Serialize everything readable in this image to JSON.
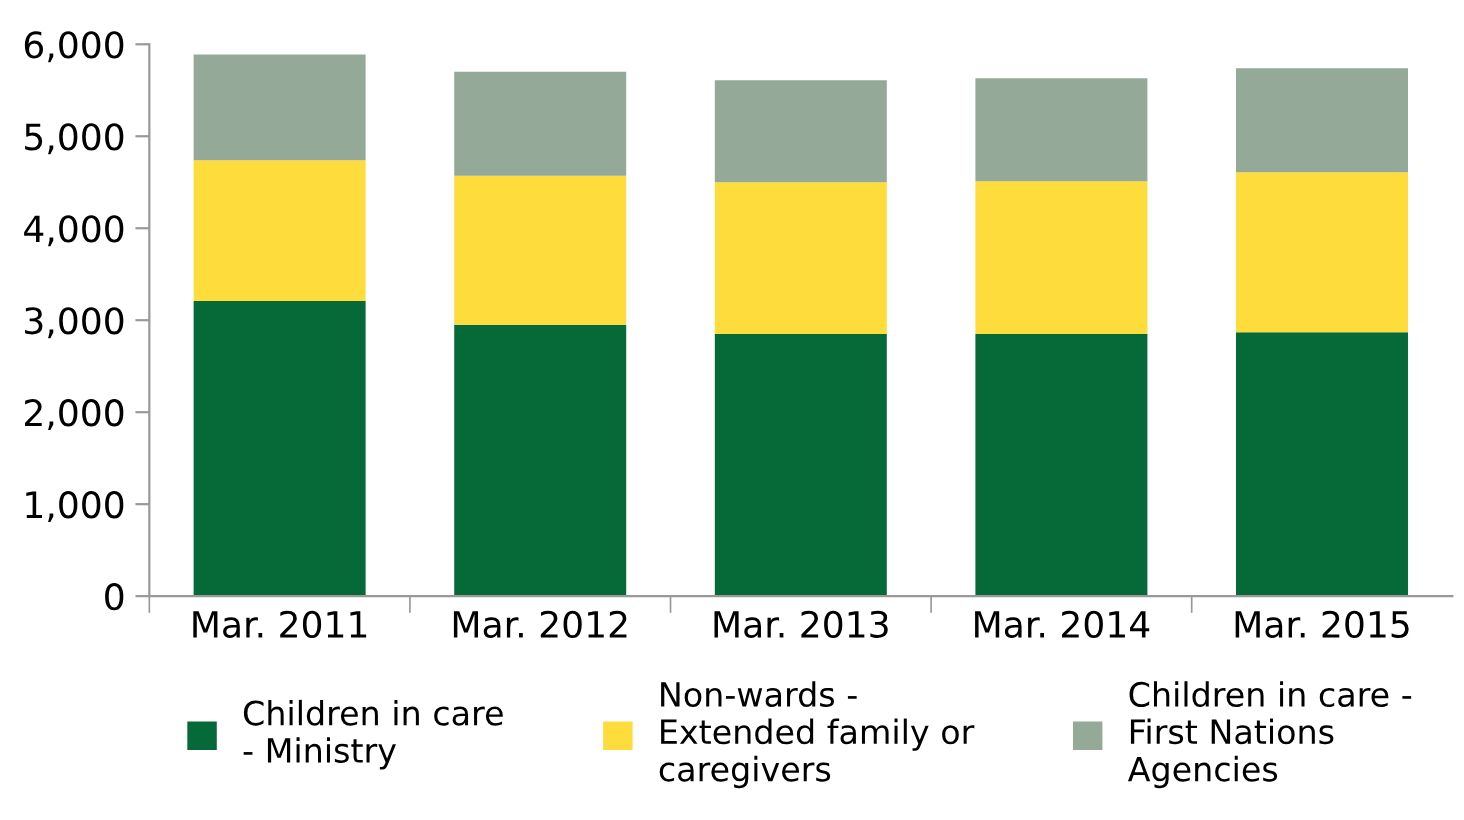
{
  "chart_data": {
    "type": "bar",
    "stacked": true,
    "categories": [
      "Mar. 2011",
      "Mar. 2012",
      "Mar. 2013",
      "Mar. 2014",
      "Mar. 2015"
    ],
    "series": [
      {
        "name": "Children in care\n- Ministry",
        "color": "#056a37",
        "values": [
          3210,
          2950,
          2850,
          2850,
          2870
        ]
      },
      {
        "name": "Non-wards -\nExtended family or\ncaregivers",
        "color": "#fddc3c",
        "values": [
          1530,
          1620,
          1650,
          1660,
          1740
        ]
      },
      {
        "name": "Children in care -\nFirst Nations\nAgencies",
        "color": "#94a997",
        "values": [
          1150,
          1130,
          1110,
          1120,
          1130
        ]
      }
    ],
    "ylim": [
      0,
      6000
    ],
    "yticks": [
      {
        "value": 0,
        "label": "0"
      },
      {
        "value": 1000,
        "label": "1,000"
      },
      {
        "value": 2000,
        "label": "2,000"
      },
      {
        "value": 3000,
        "label": "3,000"
      },
      {
        "value": 4000,
        "label": "4,000"
      },
      {
        "value": 5000,
        "label": "5,000"
      },
      {
        "value": 6000,
        "label": "6,000"
      }
    ],
    "grid": false,
    "legend": "bottom"
  }
}
